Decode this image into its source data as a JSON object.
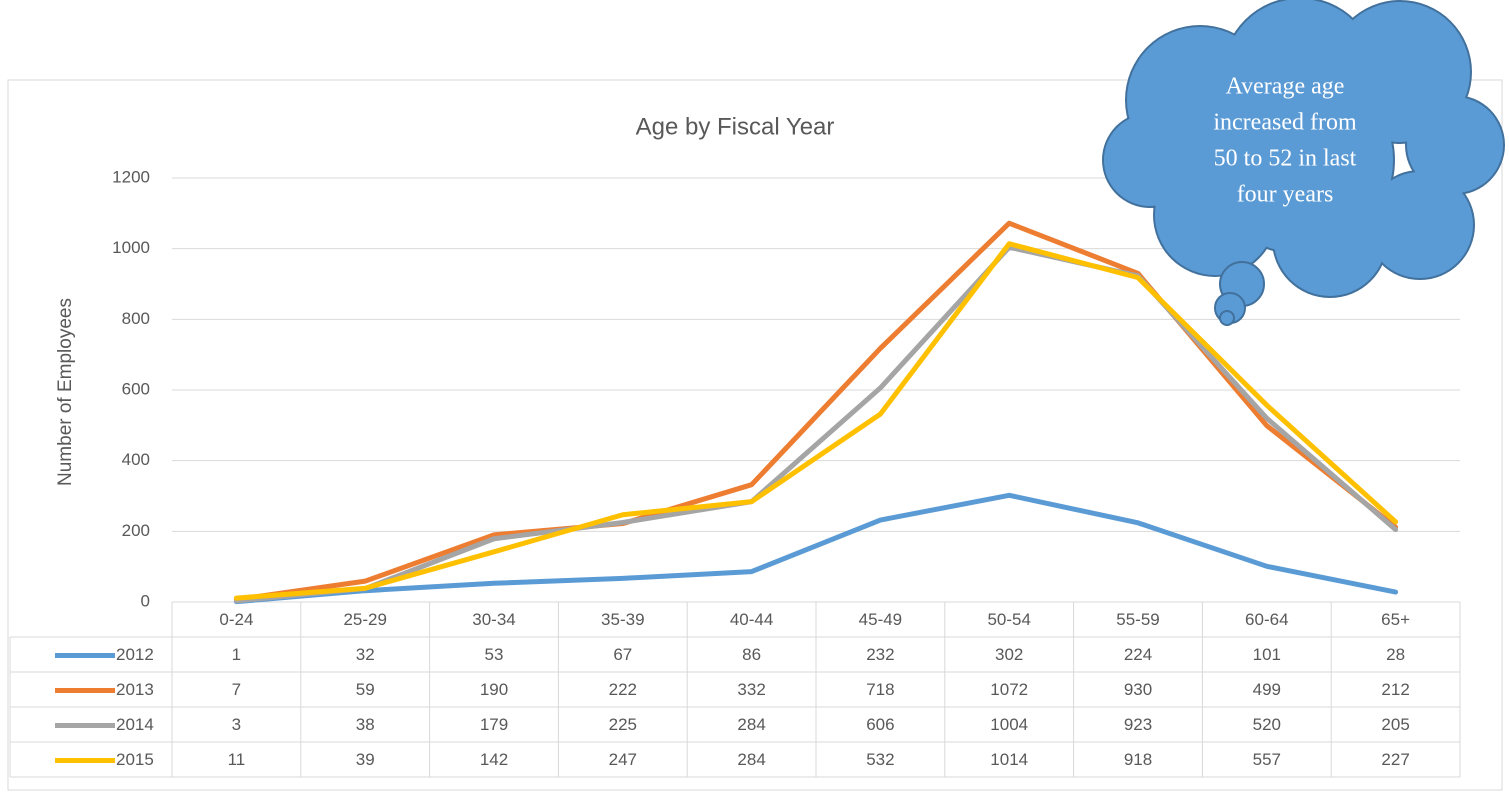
{
  "chart_data": {
    "type": "line",
    "title": "Age by Fiscal Year",
    "y_label": "Number of Employees",
    "categories": [
      "0-24",
      "25-29",
      "30-34",
      "35-39",
      "40-44",
      "45-49",
      "50-54",
      "55-59",
      "60-64",
      "65+"
    ],
    "series": [
      {
        "name": "2012",
        "color": "#5b9bd5",
        "values": [
          1,
          32,
          53,
          67,
          86,
          232,
          302,
          224,
          101,
          28
        ]
      },
      {
        "name": "2013",
        "color": "#ed7d31",
        "values": [
          7,
          59,
          190,
          222,
          332,
          718,
          1072,
          930,
          499,
          212
        ]
      },
      {
        "name": "2014",
        "color": "#a5a5a5",
        "values": [
          3,
          38,
          179,
          225,
          284,
          606,
          1004,
          923,
          520,
          205
        ]
      },
      {
        "name": "2015",
        "color": "#ffc000",
        "values": [
          11,
          39,
          142,
          247,
          284,
          532,
          1014,
          918,
          557,
          227
        ]
      }
    ],
    "ylim": [
      0,
      1200
    ],
    "yticks": [
      0,
      200,
      400,
      600,
      800,
      1000,
      1200
    ],
    "grid": true,
    "annotation": [
      "Average age",
      "increased from",
      "50 to 52 in last",
      "four years"
    ]
  }
}
